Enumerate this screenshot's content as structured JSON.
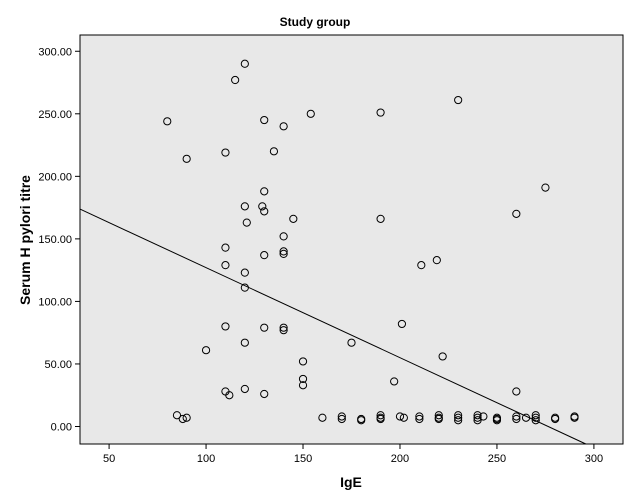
{
  "chart_data": {
    "type": "scatter",
    "title": "Study group",
    "xlabel": "IgE",
    "ylabel": "Serum H pylori titre",
    "xlim": [
      35,
      315
    ],
    "ylim": [
      -14,
      313
    ],
    "x_ticks": [
      50,
      100,
      150,
      200,
      250,
      300
    ],
    "y_ticks": [
      0,
      50,
      100,
      150,
      200,
      250,
      300
    ],
    "x_tick_labels": [
      "50",
      "100",
      "150",
      "200",
      "250",
      "300"
    ],
    "y_tick_labels": [
      "0.00",
      "50.00",
      "100.00",
      "150.00",
      "200.00",
      "250.00",
      "300.00"
    ],
    "grid": false,
    "background_color": "#e8e8e8",
    "marker": "open-circle",
    "fit_line": {
      "slope": -0.72,
      "intercept": 199
    },
    "points": [
      {
        "x": 80,
        "y": 244
      },
      {
        "x": 90,
        "y": 214
      },
      {
        "x": 85,
        "y": 9
      },
      {
        "x": 88,
        "y": 6
      },
      {
        "x": 90,
        "y": 7
      },
      {
        "x": 100,
        "y": 61
      },
      {
        "x": 110,
        "y": 219
      },
      {
        "x": 110,
        "y": 143
      },
      {
        "x": 110,
        "y": 129
      },
      {
        "x": 110,
        "y": 80
      },
      {
        "x": 110,
        "y": 28
      },
      {
        "x": 112,
        "y": 25
      },
      {
        "x": 115,
        "y": 277
      },
      {
        "x": 120,
        "y": 290
      },
      {
        "x": 120,
        "y": 176
      },
      {
        "x": 121,
        "y": 163
      },
      {
        "x": 120,
        "y": 123
      },
      {
        "x": 120,
        "y": 111
      },
      {
        "x": 120,
        "y": 67
      },
      {
        "x": 120,
        "y": 30
      },
      {
        "x": 130,
        "y": 245
      },
      {
        "x": 130,
        "y": 188
      },
      {
        "x": 129,
        "y": 176
      },
      {
        "x": 130,
        "y": 172
      },
      {
        "x": 130,
        "y": 137
      },
      {
        "x": 130,
        "y": 79
      },
      {
        "x": 130,
        "y": 26
      },
      {
        "x": 135,
        "y": 220
      },
      {
        "x": 140,
        "y": 240
      },
      {
        "x": 140,
        "y": 152
      },
      {
        "x": 140,
        "y": 140
      },
      {
        "x": 140,
        "y": 138
      },
      {
        "x": 140,
        "y": 79
      },
      {
        "x": 140,
        "y": 77
      },
      {
        "x": 145,
        "y": 166
      },
      {
        "x": 150,
        "y": 52
      },
      {
        "x": 150,
        "y": 38
      },
      {
        "x": 150,
        "y": 33
      },
      {
        "x": 154,
        "y": 250
      },
      {
        "x": 160,
        "y": 7
      },
      {
        "x": 170,
        "y": 8
      },
      {
        "x": 170,
        "y": 6
      },
      {
        "x": 175,
        "y": 67
      },
      {
        "x": 180,
        "y": 6
      },
      {
        "x": 180,
        "y": 5
      },
      {
        "x": 190,
        "y": 251
      },
      {
        "x": 190,
        "y": 166
      },
      {
        "x": 190,
        "y": 9
      },
      {
        "x": 190,
        "y": 7
      },
      {
        "x": 190,
        "y": 6
      },
      {
        "x": 197,
        "y": 36
      },
      {
        "x": 200,
        "y": 8
      },
      {
        "x": 201,
        "y": 82
      },
      {
        "x": 202,
        "y": 7
      },
      {
        "x": 210,
        "y": 8
      },
      {
        "x": 210,
        "y": 6
      },
      {
        "x": 211,
        "y": 129
      },
      {
        "x": 219,
        "y": 133
      },
      {
        "x": 220,
        "y": 9
      },
      {
        "x": 220,
        "y": 7
      },
      {
        "x": 220,
        "y": 6
      },
      {
        "x": 222,
        "y": 56
      },
      {
        "x": 230,
        "y": 261
      },
      {
        "x": 230,
        "y": 9
      },
      {
        "x": 230,
        "y": 7
      },
      {
        "x": 230,
        "y": 5
      },
      {
        "x": 240,
        "y": 9
      },
      {
        "x": 240,
        "y": 7
      },
      {
        "x": 240,
        "y": 5
      },
      {
        "x": 243,
        "y": 8
      },
      {
        "x": 250,
        "y": 7
      },
      {
        "x": 250,
        "y": 6
      },
      {
        "x": 250,
        "y": 5
      },
      {
        "x": 260,
        "y": 170
      },
      {
        "x": 260,
        "y": 28
      },
      {
        "x": 260,
        "y": 8
      },
      {
        "x": 260,
        "y": 6
      },
      {
        "x": 265,
        "y": 7
      },
      {
        "x": 270,
        "y": 9
      },
      {
        "x": 270,
        "y": 7
      },
      {
        "x": 270,
        "y": 5
      },
      {
        "x": 275,
        "y": 191
      },
      {
        "x": 280,
        "y": 7
      },
      {
        "x": 280,
        "y": 6
      },
      {
        "x": 290,
        "y": 8
      },
      {
        "x": 290,
        "y": 7
      }
    ]
  }
}
